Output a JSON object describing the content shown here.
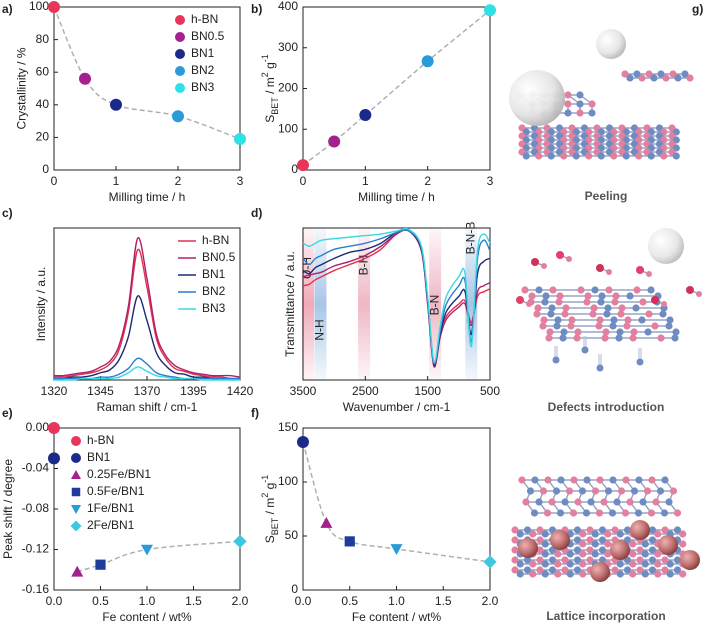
{
  "chart_data": [
    {
      "type": "scatter",
      "panel_label": "a)",
      "x_label": "Milling time / h",
      "y_label": "Crystallinity / %",
      "xlim": [
        0,
        3
      ],
      "xticks": [
        0,
        1,
        2,
        3
      ],
      "ylim": [
        0,
        100
      ],
      "yticks": [
        0,
        20,
        40,
        60,
        80,
        100
      ],
      "legend": "upper right",
      "fit_color": "#b0b0b0",
      "series": [
        {
          "name": "h-BN",
          "color": "#e8365a",
          "marker": "circle",
          "fit": true,
          "x": [
            0
          ],
          "values": [
            100
          ]
        },
        {
          "name": "BN0.5",
          "color": "#a3208f",
          "marker": "circle",
          "fit": true,
          "x": [
            0.5
          ],
          "values": [
            56
          ]
        },
        {
          "name": "BN1",
          "color": "#1b2a8a",
          "marker": "circle",
          "fit": true,
          "x": [
            1
          ],
          "values": [
            40
          ]
        },
        {
          "name": "BN2",
          "color": "#2b9ad9",
          "marker": "circle",
          "fit": true,
          "x": [
            2
          ],
          "values": [
            33
          ]
        },
        {
          "name": "BN3",
          "color": "#2fe0e6",
          "marker": "circle",
          "fit": true,
          "x": [
            3
          ],
          "values": [
            19
          ]
        }
      ]
    },
    {
      "type": "scatter",
      "panel_label": "b)",
      "x_label": "Milling time / h",
      "y_label_parts": [
        {
          "text": "S"
        },
        {
          "text": "BET",
          "style": "sub"
        },
        {
          "text": " / m"
        },
        {
          "text": "2",
          "style": "sup"
        },
        {
          "text": " g"
        },
        {
          "text": "-1",
          "style": "sup"
        }
      ],
      "xlim": [
        0,
        3
      ],
      "xticks": [
        0,
        1,
        2,
        3
      ],
      "ylim": [
        0,
        400
      ],
      "yticks": [
        0,
        100,
        200,
        300,
        400
      ],
      "fit_color": "#b0b0b0",
      "series": [
        {
          "color": "#e8365a",
          "marker": "circle",
          "fit": true,
          "x": [
            0
          ],
          "values": [
            12
          ]
        },
        {
          "color": "#a3208f",
          "marker": "circle",
          "fit": true,
          "x": [
            0.5
          ],
          "values": [
            70
          ]
        },
        {
          "color": "#1b2a8a",
          "marker": "circle",
          "fit": true,
          "x": [
            1
          ],
          "values": [
            135
          ]
        },
        {
          "color": "#2b9ad9",
          "marker": "circle",
          "fit": true,
          "x": [
            2
          ],
          "values": [
            267
          ]
        },
        {
          "color": "#2fe0e6",
          "marker": "circle",
          "fit": true,
          "x": [
            3
          ],
          "values": [
            392
          ]
        }
      ]
    },
    {
      "type": "line",
      "panel_label": "c)",
      "x_label": "Raman shift / cm-1",
      "y_label": "Intensity / a.u.",
      "xlim": [
        1320,
        1420
      ],
      "xticks": [
        1320,
        1345,
        1370,
        1395,
        1420
      ],
      "ylim": [
        0,
        1.05
      ],
      "legend": "upper right",
      "x": [
        1320,
        1325,
        1330,
        1335,
        1340,
        1345,
        1350,
        1355,
        1360,
        1365,
        1370,
        1375,
        1380,
        1385,
        1390,
        1395,
        1400,
        1405,
        1410,
        1415,
        1420
      ],
      "series": [
        {
          "name": "h-BN",
          "color": "#e0304f",
          "values": [
            0.02,
            0.02,
            0.03,
            0.04,
            0.05,
            0.07,
            0.11,
            0.21,
            0.47,
            0.9,
            0.64,
            0.29,
            0.15,
            0.08,
            0.06,
            0.04,
            0.03,
            0.02,
            0.02,
            0.01,
            0.01
          ]
        },
        {
          "name": "BN0.5",
          "color": "#b0206a",
          "values": [
            0.03,
            0.03,
            0.04,
            0.05,
            0.06,
            0.09,
            0.13,
            0.24,
            0.51,
            0.98,
            0.7,
            0.32,
            0.17,
            0.1,
            0.07,
            0.05,
            0.04,
            0.03,
            0.03,
            0.03,
            0.02
          ]
        },
        {
          "name": "BN1",
          "color": "#1c2a7a",
          "values": [
            0.01,
            0.01,
            0.02,
            0.02,
            0.03,
            0.05,
            0.07,
            0.14,
            0.3,
            0.58,
            0.41,
            0.19,
            0.1,
            0.05,
            0.04,
            0.02,
            0.02,
            0.01,
            0.01,
            0.01,
            0.01
          ]
        },
        {
          "name": "BN2",
          "color": "#2a7fd0",
          "values": [
            0.01,
            0.01,
            0.01,
            0.01,
            0.01,
            0.02,
            0.02,
            0.04,
            0.08,
            0.15,
            0.11,
            0.05,
            0.03,
            0.02,
            0.01,
            0.01,
            0.01,
            0.01,
            0.01,
            0.01,
            0.01
          ]
        },
        {
          "name": "BN3",
          "color": "#3ad8e0",
          "values": [
            0,
            0,
            0,
            0.01,
            0.01,
            0.01,
            0.01,
            0.02,
            0.05,
            0.09,
            0.06,
            0.03,
            0.02,
            0.01,
            0.01,
            0.01,
            0,
            0,
            0,
            0,
            0
          ]
        }
      ]
    },
    {
      "type": "line",
      "panel_label": "d)",
      "x_label": "Wavenumber / cm-1",
      "y_label": "Transmittance / a.u.",
      "xlim": [
        3500,
        500
      ],
      "xticks": [
        3500,
        2500,
        1500,
        500
      ],
      "ylim": [
        0,
        1
      ],
      "bands": [
        {
          "label": "O-H",
          "x": 3420,
          "color": "#e0405f"
        },
        {
          "label": "N-H",
          "x": 3220,
          "color": "#3f7fc8"
        },
        {
          "label": "B-H",
          "x": 2520,
          "color": "#d9607f"
        },
        {
          "label": "B-N",
          "x": 1380,
          "color": "#d9607f"
        },
        {
          "label": "B-N-B",
          "x": 800,
          "color": "#3f7fc8"
        }
      ],
      "x": [
        3500,
        3400,
        3300,
        3200,
        3000,
        2750,
        2500,
        2250,
        2000,
        1800,
        1600,
        1500,
        1400,
        1300,
        1200,
        1000,
        900,
        800,
        700,
        600,
        500
      ],
      "series": [
        {
          "color": "#e0304f",
          "values": [
            0.62,
            0.63,
            0.66,
            0.68,
            0.72,
            0.76,
            0.8,
            0.86,
            0.96,
            0.98,
            0.85,
            0.5,
            0.1,
            0.3,
            0.42,
            0.5,
            0.52,
            0.38,
            0.55,
            0.58,
            0.6
          ]
        },
        {
          "color": "#b0206a",
          "values": [
            0.68,
            0.69,
            0.7,
            0.71,
            0.75,
            0.78,
            0.82,
            0.88,
            0.96,
            0.98,
            0.85,
            0.5,
            0.09,
            0.28,
            0.4,
            0.48,
            0.5,
            0.36,
            0.58,
            0.62,
            0.64
          ]
        },
        {
          "color": "#1c2a7a",
          "values": [
            0.72,
            0.7,
            0.74,
            0.76,
            0.8,
            0.84,
            0.86,
            0.9,
            0.97,
            0.98,
            0.86,
            0.52,
            0.1,
            0.3,
            0.45,
            0.55,
            0.58,
            0.3,
            0.7,
            0.78,
            0.8
          ]
        },
        {
          "color": "#2a7fd0",
          "values": [
            0.8,
            0.76,
            0.8,
            0.82,
            0.86,
            0.88,
            0.9,
            0.93,
            0.97,
            0.98,
            0.87,
            0.53,
            0.11,
            0.32,
            0.5,
            0.62,
            0.65,
            0.25,
            0.8,
            0.92,
            0.85
          ]
        },
        {
          "color": "#3ad8e0",
          "values": [
            0.9,
            0.88,
            0.9,
            0.92,
            0.93,
            0.94,
            0.95,
            0.96,
            0.98,
            0.99,
            0.88,
            0.55,
            0.12,
            0.35,
            0.55,
            0.68,
            0.7,
            0.22,
            0.85,
            0.96,
            0.9
          ]
        }
      ]
    },
    {
      "type": "scatter",
      "panel_label": "e)",
      "x_label": "Fe content / wt%",
      "y_label": "Peak shift / degree",
      "xlim": [
        0,
        2
      ],
      "xticks": [
        {
          "value": 0,
          "label": "0.0"
        },
        0.5,
        {
          "value": 1,
          "label": "1.0"
        },
        1.5,
        {
          "value": 2,
          "label": "2.0"
        }
      ],
      "ylim": [
        -0.16,
        0
      ],
      "yticks": [
        {
          "value": 0,
          "label": "0.00"
        },
        -0.04,
        -0.08,
        -0.12,
        -0.16
      ],
      "legend": "upper left",
      "fit_color": "#b0b0b0",
      "series": [
        {
          "name": "h-BN",
          "color": "#e8365a",
          "marker": "circle",
          "fit": false,
          "x": [
            0
          ],
          "values": [
            0
          ]
        },
        {
          "name": "BN1",
          "color": "#1b2a8a",
          "marker": "circle",
          "fit": false,
          "x": [
            0
          ],
          "values": [
            -0.03
          ]
        },
        {
          "name": "0.25Fe/BN1",
          "color": "#a3208f",
          "marker": "triangle",
          "fit": true,
          "x": [
            0.25
          ],
          "values": [
            -0.142
          ]
        },
        {
          "name": "0.5Fe/BN1",
          "color": "#1f3c9a",
          "marker": "square",
          "fit": true,
          "x": [
            0.5
          ],
          "values": [
            -0.135
          ]
        },
        {
          "name": "1Fe/BN1",
          "color": "#2b9ad9",
          "marker": "triangle-down",
          "fit": true,
          "x": [
            1
          ],
          "values": [
            -0.12
          ]
        },
        {
          "name": "2Fe/BN1",
          "color": "#3cc8e0",
          "marker": "diamond",
          "fit": true,
          "x": [
            2
          ],
          "values": [
            -0.112
          ]
        }
      ]
    },
    {
      "type": "scatter",
      "panel_label": "f)",
      "x_label": "Fe content / wt%",
      "y_label_parts": [
        {
          "text": "S"
        },
        {
          "text": "BET",
          "style": "sub"
        },
        {
          "text": " / m"
        },
        {
          "text": "2",
          "style": "sup"
        },
        {
          "text": " g"
        },
        {
          "text": "-1",
          "style": "sup"
        }
      ],
      "xlim": [
        0,
        2
      ],
      "xticks": [
        {
          "value": 0,
          "label": "0.0"
        },
        0.5,
        {
          "value": 1,
          "label": "1.0"
        },
        1.5,
        {
          "value": 2,
          "label": "2.0"
        }
      ],
      "ylim": [
        0,
        150
      ],
      "yticks": [
        0,
        50,
        100,
        150
      ],
      "fit_color": "#b0b0b0",
      "series": [
        {
          "color": "#1b2a8a",
          "marker": "circle",
          "fit": true,
          "x": [
            0
          ],
          "values": [
            137
          ]
        },
        {
          "color": "#a3208f",
          "marker": "triangle",
          "fit": true,
          "x": [
            0.25
          ],
          "values": [
            62
          ]
        },
        {
          "color": "#1f3c9a",
          "marker": "square",
          "fit": true,
          "x": [
            0.5
          ],
          "values": [
            45
          ]
        },
        {
          "color": "#2b9ad9",
          "marker": "triangle-down",
          "fit": true,
          "x": [
            1
          ],
          "values": [
            38
          ]
        },
        {
          "color": "#3cc8e0",
          "marker": "diamond",
          "fit": true,
          "x": [
            2
          ],
          "values": [
            26
          ]
        }
      ]
    }
  ],
  "illustration": {
    "label": "g)",
    "captions": [
      "Peeling",
      "Defects introduction",
      "Lattice incorporation"
    ]
  }
}
